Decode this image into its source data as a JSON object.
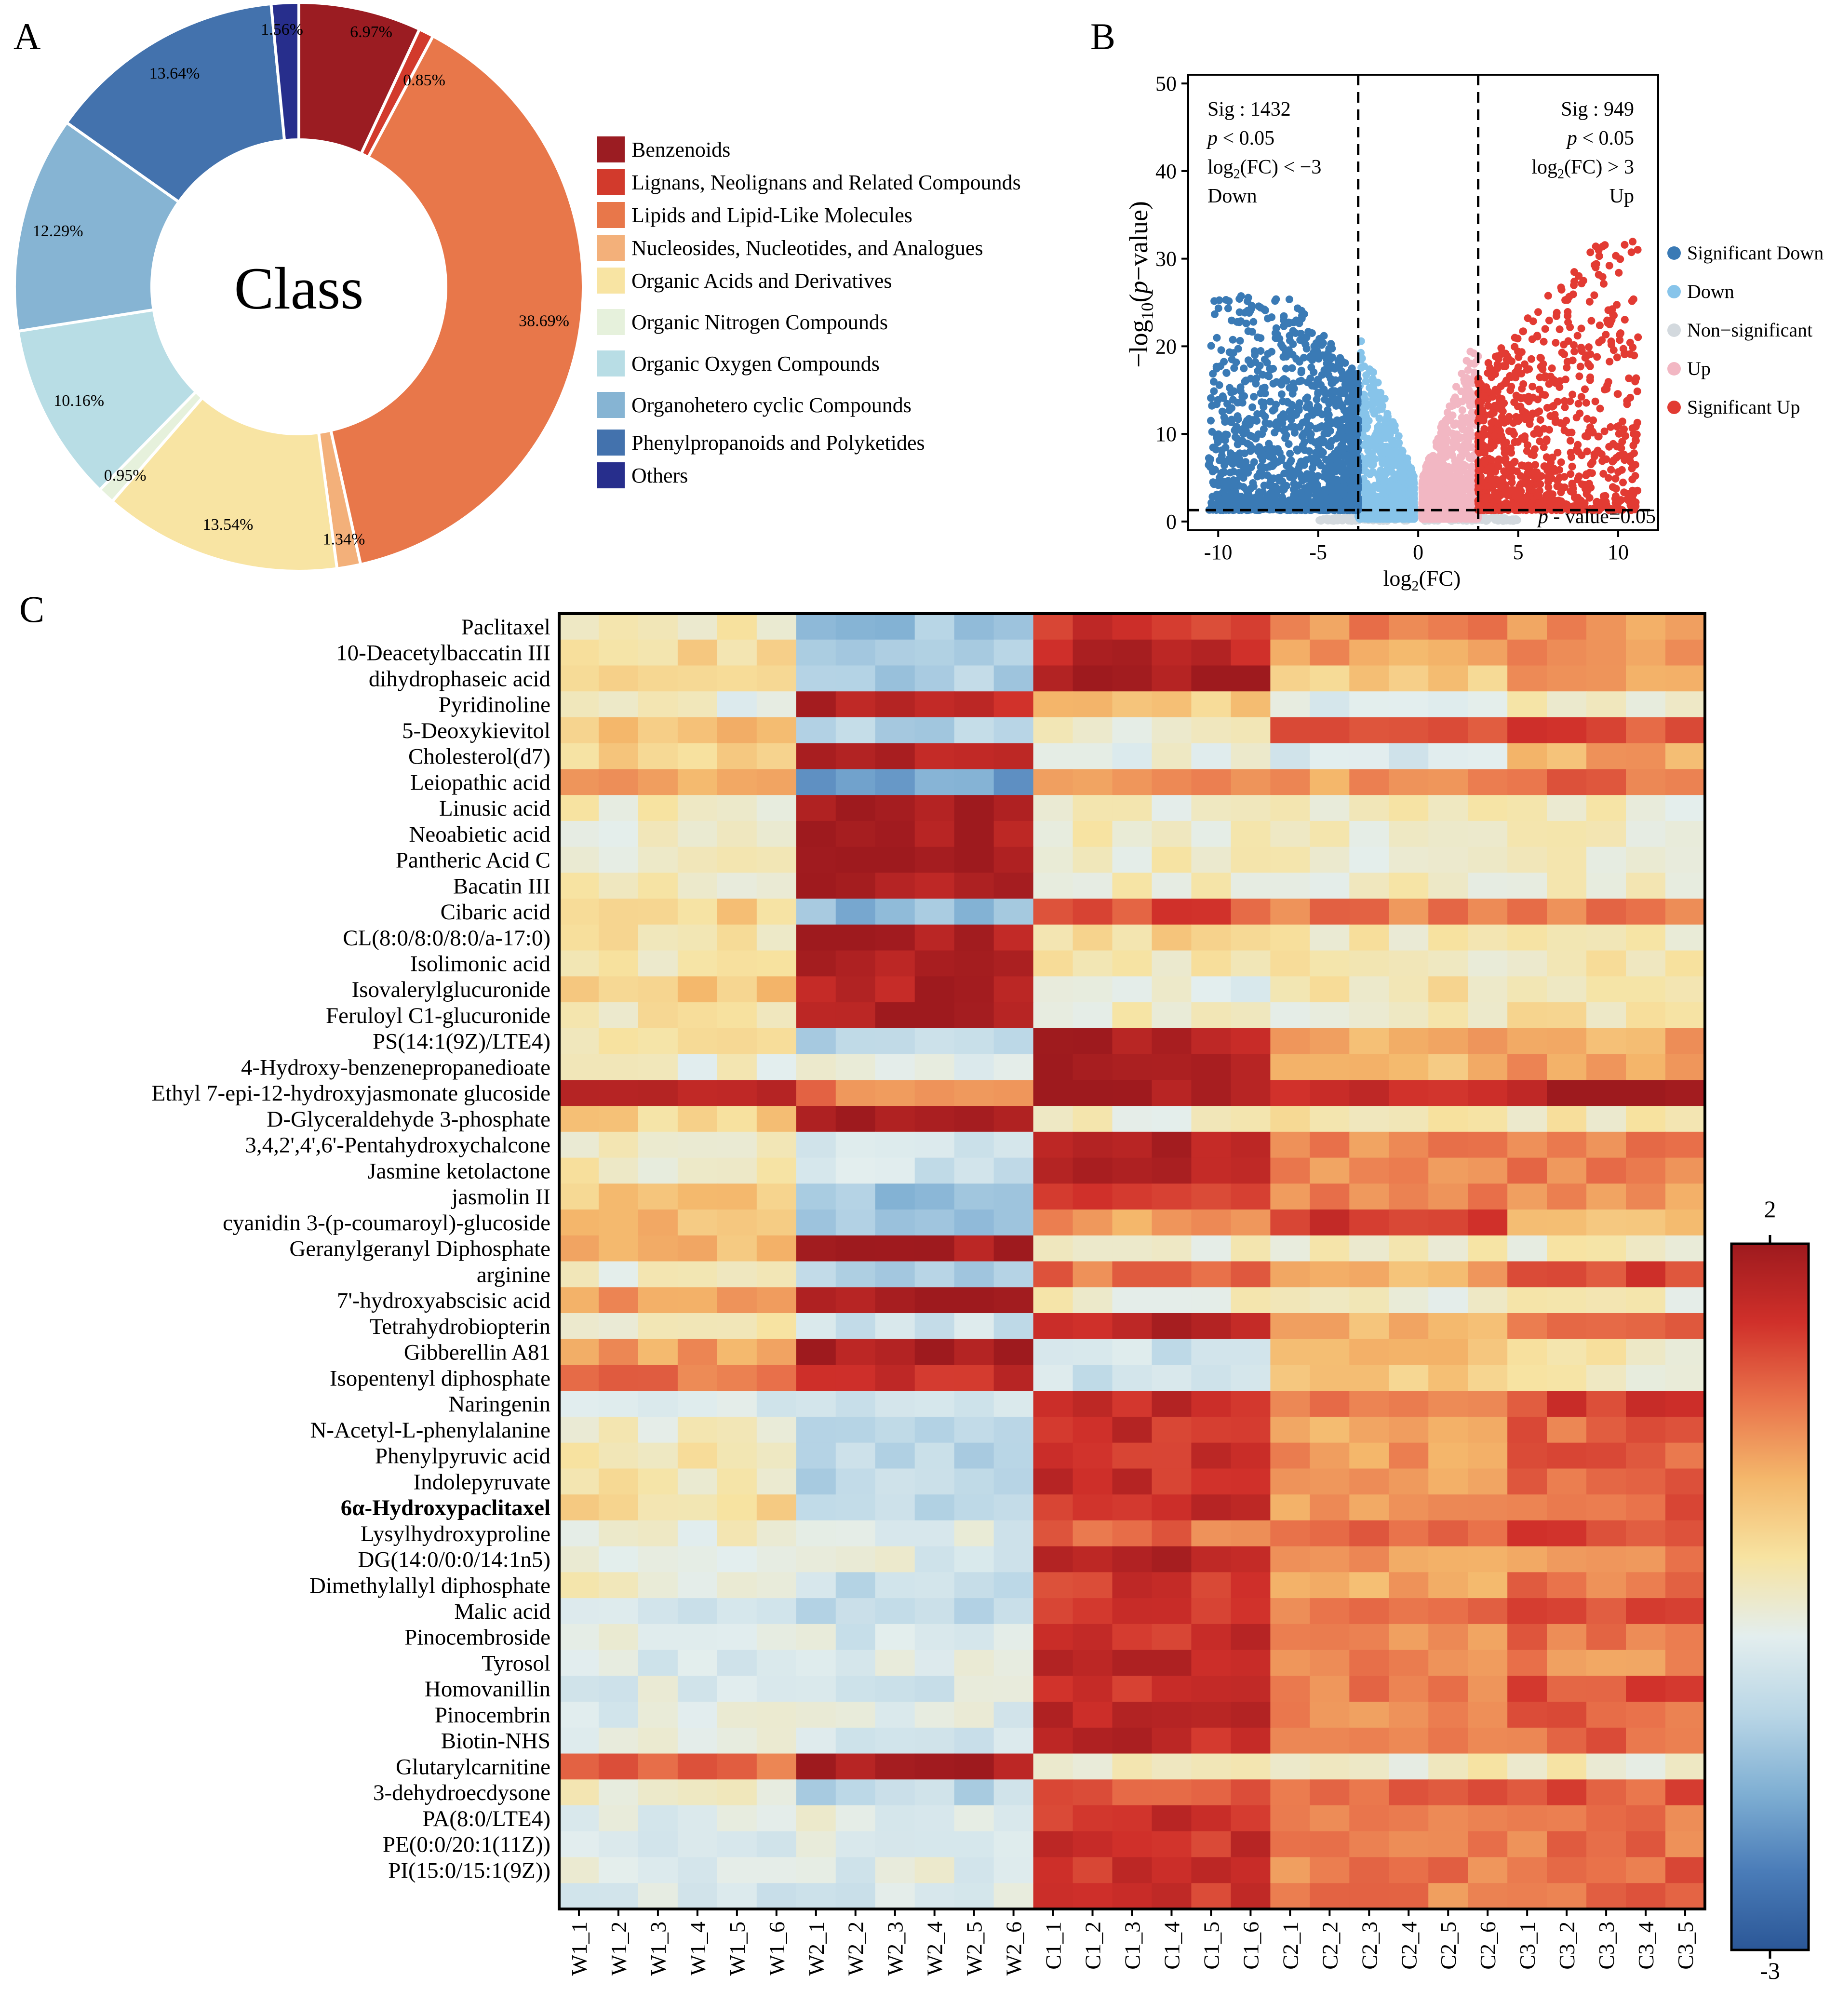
{
  "panels": {
    "a": "A",
    "b": "B",
    "c": "C"
  },
  "chart_data": [
    {
      "type": "pie",
      "variant": "donut",
      "center_label": "Class",
      "slices": [
        {
          "label": "Benzenoids",
          "value": 6.97,
          "text": "6.97%",
          "color": "#9b1c22"
        },
        {
          "label": "Lignans, Neolignans and Related Compounds",
          "value": 0.85,
          "text": "0.85%",
          "color": "#d23a2c"
        },
        {
          "label": "Lipids and Lipid-Like Molecules",
          "value": 38.69,
          "text": "38.69%",
          "color": "#e8774a"
        },
        {
          "label": "Nucleosides, Nucleotides, and Analogues",
          "value": 1.34,
          "text": "1.34%",
          "color": "#f3b07a"
        },
        {
          "label": "Organic Acids and Derivatives",
          "value": 13.54,
          "text": "13.54%",
          "color": "#f8e4a3"
        },
        {
          "label": "Organic Nitrogen Compounds",
          "value": 0.95,
          "text": "0.95%",
          "color": "#e6f1dc"
        },
        {
          "label": "Organic Oxygen Compounds",
          "value": 10.16,
          "text": "10.16%",
          "color": "#b8dde5"
        },
        {
          "label": "Organohetero cyclic Compounds",
          "value": 12.29,
          "text": "12.29%",
          "color": "#86b4d3"
        },
        {
          "label": "Phenylpropanoids and Polyketides",
          "value": 13.64,
          "text": "13.64%",
          "color": "#4372ad"
        },
        {
          "label": "Others",
          "value": 1.56,
          "text": "1.56%",
          "color": "#272e8c"
        }
      ]
    },
    {
      "type": "scatter",
      "variant": "volcano",
      "xlabel_main": "log",
      "xlabel_sub": "2",
      "xlabel_tail": "(FC)",
      "ylabel_pre": "−log",
      "ylabel_sub": "10",
      "ylabel_open": "(",
      "ylabel_p": "p",
      "ylabel_tail": "−value)",
      "xlim": [
        -11.5,
        12
      ],
      "ylim": [
        -1,
        51
      ],
      "xticks": [
        "-10",
        "-5",
        "0",
        "5",
        "10"
      ],
      "yticks": [
        "0",
        "10",
        "20",
        "30",
        "40",
        "50"
      ],
      "fc_threshold": 3,
      "p_threshold_neglog10": 1.3,
      "annotations": {
        "left_sig": "Sig : 1432",
        "left_p_italic": "p",
        "left_p_rest": " < 0.05",
        "left_fc_pre": "log",
        "left_fc_sub": "2",
        "left_fc_post": "(FC) < −3",
        "left_dir": "Down",
        "right_sig": "Sig : 949",
        "right_p_italic": "p",
        "right_p_rest": " < 0.05",
        "right_fc_pre": "log",
        "right_fc_sub": "2",
        "right_fc_post": "(FC) > 3",
        "right_dir": "Up",
        "pline_italic": "p",
        "pline_rest": " - value=0.05"
      },
      "legend": [
        {
          "label": "Significant Down",
          "color": "#3a7ab5"
        },
        {
          "label": "Down",
          "color": "#87c4ea"
        },
        {
          "label": "Non−significant",
          "color": "#d3d9de"
        },
        {
          "label": "Up",
          "color": "#f2b7c3"
        },
        {
          "label": "Significant Up",
          "color": "#e23b33"
        }
      ],
      "groups": [
        {
          "name": "Significant Down",
          "color": "#3a7ab5",
          "count": 1432,
          "x_range": [
            -10.5,
            -3
          ],
          "y_max": 26
        },
        {
          "name": "Down",
          "color": "#87c4ea",
          "count": 900,
          "x_range": [
            -3,
            -0.2
          ],
          "y_max": 24
        },
        {
          "name": "Non-significant",
          "color": "#d3d9de",
          "count": 300,
          "x_range": [
            -5,
            5
          ],
          "y_max": 1.3
        },
        {
          "name": "Up",
          "color": "#f2b7c3",
          "count": 900,
          "x_range": [
            0.2,
            3
          ],
          "y_max": 24
        },
        {
          "name": "Significant Up",
          "color": "#e23b33",
          "count": 949,
          "x_range": [
            3,
            11
          ],
          "y_max": 32
        }
      ]
    },
    {
      "type": "heatmap",
      "rows": [
        "Paclitaxel",
        "10-Deacetylbaccatin III",
        "dihydrophaseic acid",
        "Pyridinoline",
        "5-Deoxykievitol",
        "Cholesterol(d7)",
        "Leiopathic acid",
        "Linusic acid",
        "Neoabietic acid",
        "Pantheric Acid C",
        "Bacatin III",
        "Cibaric acid",
        "CL(8:0/8:0/8:0/a-17:0)",
        "Isolimonic acid",
        "Isovalerylglucuronide",
        "Feruloyl C1-glucuronide",
        "PS(14:1(9Z)/LTE4)",
        "4-Hydroxy-benzenepropanedioate",
        "Ethyl 7-epi-12-hydroxyjasmonate glucoside",
        "D-Glyceraldehyde 3-phosphate",
        "3,4,2',4',6'-Pentahydroxychalcone",
        "Jasmine ketolactone",
        "jasmolin II",
        "cyanidin 3-(p-coumaroyl)-glucoside",
        "Geranylgeranyl Diphosphate",
        "arginine",
        "7'-hydroxyabscisic acid",
        "Tetrahydrobiopterin",
        "Gibberellin A81",
        "Isopentenyl diphosphate",
        "Naringenin",
        "N-Acetyl-L-phenylalanine",
        "Phenylpyruvic acid",
        "Indolepyruvate",
        "6α-Hydroxypaclitaxel",
        "Lysylhydroxyproline",
        "DG(14:0/0:0/14:1n5)",
        "Dimethylallyl diphosphate",
        "Malic acid",
        "Pinocembroside",
        "Tyrosol",
        "Homovanillin",
        "Pinocembrin",
        "Biotin-NHS",
        "Glutarylcarnitine",
        "3-dehydroecdysone",
        "PA(8:0/LTE4)",
        "PE(0:0/20:1(11Z))",
        "PI(15:0/15:1(9Z))",
        ""
      ],
      "bold_row": "6α-Hydroxypaclitaxel",
      "columns": [
        "W1_1",
        "W1_2",
        "W1_3",
        "W1_4",
        "W1_5",
        "W1_6",
        "W2_1",
        "W2_2",
        "W2_3",
        "W2_4",
        "W2_5",
        "W2_6",
        "C1_1",
        "C1_2",
        "C1_3",
        "C1_4",
        "C1_5",
        "C1_6",
        "C2_1",
        "C2_2",
        "C2_3",
        "C2_4",
        "C2_5",
        "C2_6",
        "C3_1",
        "C3_2",
        "C3_3",
        "C3_4",
        "C3_5"
      ],
      "group_base": [
        [
          -0.3,
          -1.6,
          1.4,
          0.7,
          0.6
        ],
        [
          -0.1,
          -1.5,
          1.7,
          0.5,
          0.6
        ],
        [
          0.1,
          -1.4,
          1.8,
          0.1,
          0.5
        ],
        [
          -0.6,
          1.7,
          0.1,
          -0.7,
          -0.5
        ],
        [
          0.2,
          -1.3,
          -0.5,
          1.0,
          1.2
        ],
        [
          -0.1,
          1.8,
          -0.7,
          -1.0,
          0.4
        ],
        [
          0.5,
          -2.0,
          0.6,
          0.6,
          0.9
        ],
        [
          -0.5,
          1.9,
          -0.5,
          -0.5,
          -0.5
        ],
        [
          -0.5,
          1.9,
          -0.5,
          -0.5,
          -0.5
        ],
        [
          -0.5,
          1.9,
          -0.5,
          -0.5,
          -0.5
        ],
        [
          -0.5,
          1.9,
          -0.5,
          -0.5,
          -0.5
        ],
        [
          0.0,
          -1.7,
          1.2,
          0.8,
          0.8
        ],
        [
          -0.3,
          1.8,
          -0.1,
          -0.4,
          -0.4
        ],
        [
          -0.4,
          1.8,
          -0.4,
          -0.4,
          -0.4
        ],
        [
          0.1,
          1.8,
          -0.7,
          -0.3,
          -0.3
        ],
        [
          -0.3,
          1.8,
          -0.5,
          -0.5,
          -0.3
        ],
        [
          -0.3,
          -1.3,
          1.8,
          0.4,
          0.4
        ],
        [
          -0.6,
          -0.8,
          1.9,
          0.2,
          0.6
        ],
        [
          1.5,
          0.8,
          1.9,
          1.6,
          1.9
        ],
        [
          0.0,
          1.9,
          -0.5,
          -0.2,
          -0.3
        ],
        [
          -0.5,
          -0.9,
          1.8,
          0.7,
          0.8
        ],
        [
          -0.4,
          -1.0,
          1.8,
          0.6,
          0.8
        ],
        [
          0.1,
          -1.6,
          1.4,
          0.7,
          0.6
        ],
        [
          0.3,
          -1.6,
          0.6,
          1.4,
          0.3
        ],
        [
          0.3,
          1.9,
          -0.5,
          -0.5,
          -0.5
        ],
        [
          -0.5,
          -1.3,
          0.9,
          0.4,
          1.3
        ],
        [
          0.6,
          1.9,
          -0.5,
          -0.5,
          -0.5
        ],
        [
          -0.5,
          -1.1,
          1.7,
          0.3,
          1.0
        ],
        [
          0.5,
          1.9,
          -1.0,
          0.2,
          -0.4
        ],
        [
          0.9,
          1.5,
          -1.1,
          0.2,
          -0.5
        ],
        [
          -0.9,
          -0.9,
          1.6,
          0.8,
          1.3
        ],
        [
          -0.5,
          -1.2,
          1.5,
          0.4,
          1.0
        ],
        [
          -0.3,
          -1.3,
          1.5,
          0.6,
          1.0
        ],
        [
          -0.3,
          -1.3,
          1.5,
          0.5,
          1.0
        ],
        [
          -0.1,
          -1.3,
          1.5,
          0.6,
          1.0
        ],
        [
          -0.6,
          -0.8,
          0.9,
          0.9,
          1.2
        ],
        [
          -0.7,
          -0.8,
          1.7,
          0.6,
          0.7
        ],
        [
          -0.5,
          -1.2,
          1.4,
          0.5,
          0.9
        ],
        [
          -1.0,
          -1.2,
          1.5,
          0.8,
          1.1
        ],
        [
          -0.8,
          -0.9,
          1.5,
          0.6,
          0.9
        ],
        [
          -0.8,
          -0.8,
          1.7,
          0.7,
          0.7
        ],
        [
          -0.8,
          -0.9,
          1.4,
          0.8,
          1.2
        ],
        [
          -0.8,
          -0.8,
          1.6,
          0.6,
          1.0
        ],
        [
          -0.7,
          -1.1,
          1.6,
          0.6,
          1.0
        ],
        [
          1.0,
          1.9,
          -0.5,
          -0.5,
          -0.5
        ],
        [
          -0.5,
          -1.3,
          1.2,
          1.0,
          1.1
        ],
        [
          -0.8,
          -0.7,
          1.5,
          0.8,
          0.8
        ],
        [
          -0.8,
          -0.8,
          1.5,
          0.7,
          0.9
        ],
        [
          -0.8,
          -0.8,
          1.4,
          0.8,
          1.0
        ],
        [
          -0.9,
          -0.9,
          1.4,
          0.8,
          0.9
        ]
      ],
      "color_range": [
        -3,
        2
      ],
      "colorbar_labels": {
        "max": "2",
        "min": "-3"
      },
      "colors": [
        "#2b5797",
        "#4a7cb8",
        "#7fafd3",
        "#b9d6e6",
        "#e3eeee",
        "#f7e3a1",
        "#f4b76b",
        "#e9734b",
        "#d0302a",
        "#9e1a1e"
      ]
    }
  ]
}
